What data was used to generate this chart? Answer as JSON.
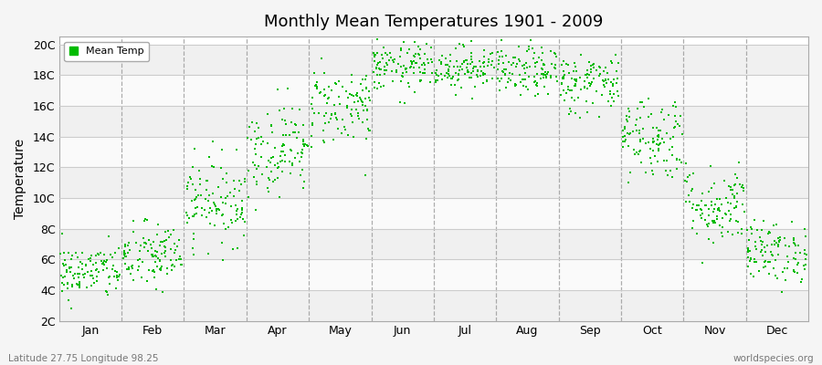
{
  "title": "Monthly Mean Temperatures 1901 - 2009",
  "ylabel": "Temperature",
  "subtitle_left": "Latitude 27.75 Longitude 98.25",
  "subtitle_right": "worldspecies.org",
  "legend_label": "Mean Temp",
  "ytick_labels": [
    "2C",
    "4C",
    "6C",
    "8C",
    "10C",
    "12C",
    "14C",
    "16C",
    "18C",
    "20C"
  ],
  "ytick_values": [
    2,
    4,
    6,
    8,
    10,
    12,
    14,
    16,
    18,
    20
  ],
  "ylim": [
    2,
    20.5
  ],
  "months": [
    "Jan",
    "Feb",
    "Mar",
    "Apr",
    "May",
    "Jun",
    "Jul",
    "Aug",
    "Sep",
    "Oct",
    "Nov",
    "Dec"
  ],
  "background_color": "#f5f5f5",
  "plot_bg_color": "#ffffff",
  "dot_color": "#00bb00",
  "dot_size": 3,
  "dashed_color": "#999999",
  "band_colors": [
    "#f0f0f0",
    "#fafafa"
  ],
  "month_means": [
    5.2,
    6.2,
    9.8,
    13.2,
    16.0,
    18.5,
    18.5,
    18.2,
    17.5,
    14.0,
    9.5,
    6.5
  ],
  "month_stds": [
    0.9,
    1.1,
    1.4,
    1.5,
    1.3,
    0.8,
    0.7,
    0.8,
    1.0,
    1.4,
    1.3,
    1.0
  ],
  "n_points_per_month": 109,
  "seed": 42
}
